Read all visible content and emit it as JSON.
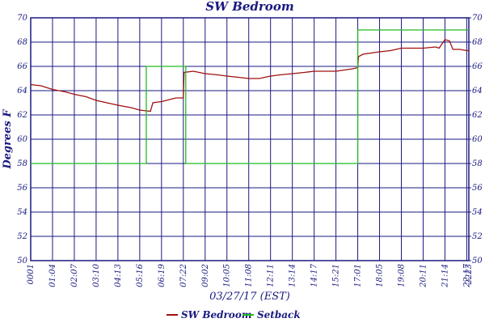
{
  "chart_data": {
    "type": "line",
    "title": "SW Bedroom",
    "y_label": "Degrees F",
    "x_label": "03/27/17 (EST)",
    "xlim": [
      0,
      1266
    ],
    "xticks": [
      {
        "value": 0,
        "label": "0001"
      },
      {
        "value": 63,
        "label": "01:04"
      },
      {
        "value": 126,
        "label": "02:07"
      },
      {
        "value": 189,
        "label": "03:10"
      },
      {
        "value": 252,
        "label": "04:13"
      },
      {
        "value": 315,
        "label": "05:16"
      },
      {
        "value": 378,
        "label": "06:19"
      },
      {
        "value": 441,
        "label": "07:22"
      },
      {
        "value": 504,
        "label": "09:02"
      },
      {
        "value": 567,
        "label": "10:05"
      },
      {
        "value": 630,
        "label": "11:08"
      },
      {
        "value": 693,
        "label": "12:11"
      },
      {
        "value": 756,
        "label": "13:14"
      },
      {
        "value": 819,
        "label": "14:17"
      },
      {
        "value": 882,
        "label": "15:21"
      },
      {
        "value": 945,
        "label": "17:01"
      },
      {
        "value": 1008,
        "label": "18:05"
      },
      {
        "value": 1071,
        "label": "19:08"
      },
      {
        "value": 1134,
        "label": "20:11"
      },
      {
        "value": 1197,
        "label": "21:14"
      },
      {
        "value": 1260,
        "label": "22:17"
      },
      {
        "value": 1266,
        "label": "2223"
      }
    ],
    "ylim": [
      50,
      70
    ],
    "yticks": [
      50,
      52,
      54,
      56,
      58,
      60,
      62,
      64,
      66,
      68,
      70
    ],
    "y2lim": [
      50,
      70
    ],
    "y2ticks": [
      50,
      52,
      54,
      56,
      58,
      60,
      62,
      64,
      66,
      68,
      70
    ],
    "grid": true,
    "legend": "bottom",
    "series": [
      {
        "name": "SW Bedroom",
        "color": "#a01010",
        "x": [
          0,
          30,
          63,
          100,
          126,
          160,
          189,
          220,
          252,
          290,
          315,
          346,
          353,
          378,
          420,
          441,
          443,
          470,
          504,
          540,
          567,
          600,
          630,
          660,
          693,
          720,
          756,
          790,
          819,
          850,
          882,
          930,
          945,
          947,
          960,
          1008,
          1040,
          1071,
          1100,
          1134,
          1170,
          1180,
          1197,
          1210,
          1220,
          1240,
          1260,
          1266
        ],
        "values": [
          64.5,
          64.4,
          64.1,
          63.9,
          63.7,
          63.5,
          63.2,
          63.0,
          62.8,
          62.6,
          62.4,
          62.3,
          63.0,
          63.1,
          63.4,
          63.4,
          65.5,
          65.6,
          65.4,
          65.3,
          65.2,
          65.1,
          65.0,
          65.0,
          65.2,
          65.3,
          65.4,
          65.5,
          65.6,
          65.6,
          65.6,
          65.8,
          65.9,
          66.8,
          67.0,
          67.2,
          67.3,
          67.5,
          67.5,
          67.5,
          67.6,
          67.5,
          68.2,
          68.1,
          67.4,
          67.4,
          67.3,
          67.3
        ]
      },
      {
        "name": "Setback",
        "color": "#22bb22",
        "x": [
          0,
          334,
          334,
          448,
          448,
          945,
          945,
          1266
        ],
        "values": [
          58,
          58,
          66,
          66,
          58,
          58,
          69,
          69
        ]
      }
    ]
  }
}
